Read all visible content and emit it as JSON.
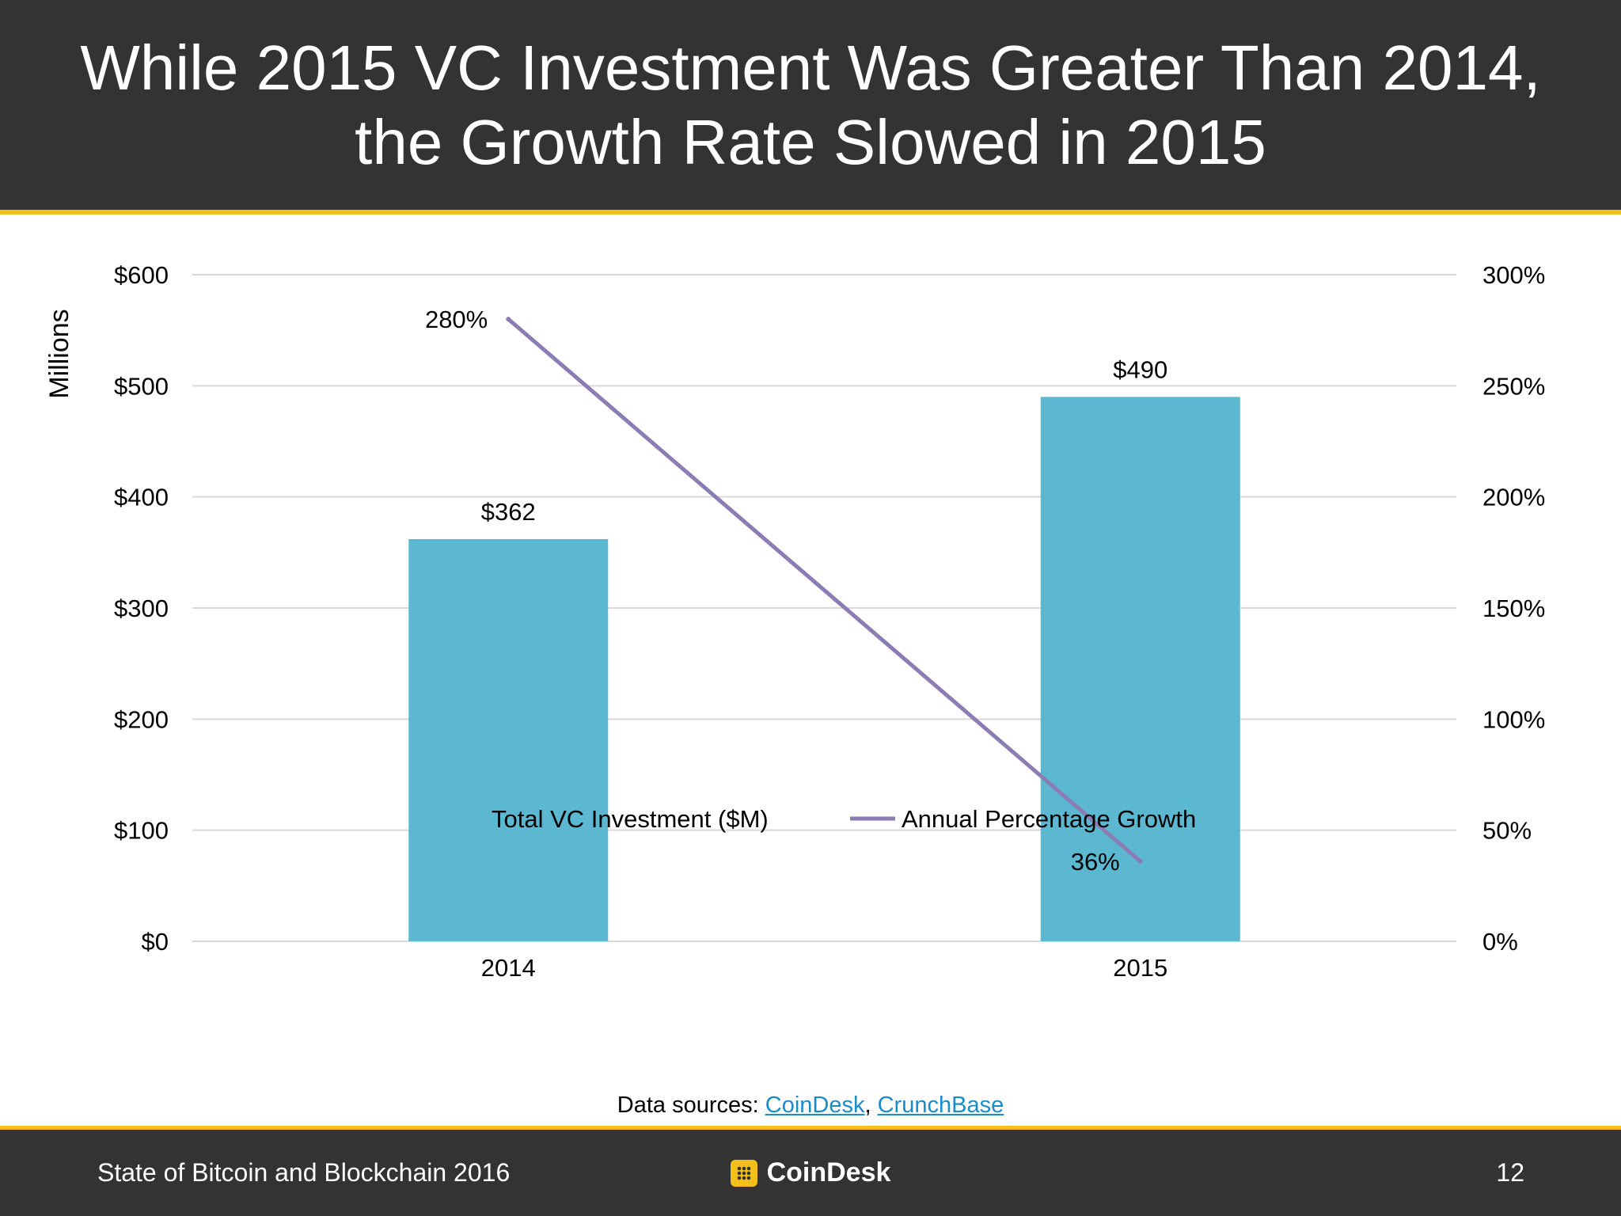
{
  "header": {
    "title_line1": "While 2015 VC Investment Was Greater Than 2014,",
    "title_line2": "the Growth Rate Slowed in 2015"
  },
  "chart_data": {
    "type": "bar",
    "categories": [
      "2014",
      "2015"
    ],
    "series": [
      {
        "name": "Total VC Investment ($M)",
        "type": "bar",
        "axis": "left",
        "values": [
          362,
          490
        ],
        "labels": [
          "$362",
          "$490"
        ],
        "color": "#5bb8d0"
      },
      {
        "name": "Annual Percentage Growth",
        "type": "line",
        "axis": "right",
        "values": [
          280,
          36
        ],
        "labels": [
          "280%",
          "36%"
        ],
        "color": "#8b7cb3"
      }
    ],
    "ylabel": "Millions",
    "ylim": [
      0,
      600
    ],
    "y2lim": [
      0,
      300
    ],
    "yticks": [
      "$0",
      "$100",
      "$200",
      "$300",
      "$400",
      "$500",
      "$600"
    ],
    "y2ticks": [
      "0%",
      "50%",
      "100%",
      "150%",
      "200%",
      "250%",
      "300%"
    ],
    "grid": true,
    "legend_position": "bottom"
  },
  "sources": {
    "prefix": "Data sources: ",
    "link1": "CoinDesk",
    "separator": ", ",
    "link2": "CrunchBase"
  },
  "footer": {
    "report_title": "State of Bitcoin and Blockchain 2016",
    "logo_text": "CoinDesk",
    "page_number": "12"
  }
}
